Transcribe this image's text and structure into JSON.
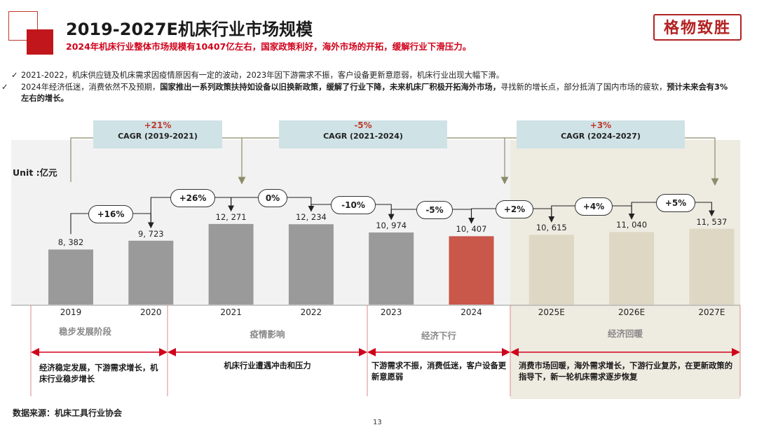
{
  "title": "2019-2027E机床行业市场规模",
  "subtitle": "2024年机床行业整体市场规模有10407亿左右，国家政策利好，海外市场的开拓，缓解行业下滑压力。",
  "logo_text": "格物致胜",
  "bullets": [
    {
      "check": "✓",
      "text": "2021-2022，机床供应链及机床需求因疫情原因有一定的波动，2023年因下游需求不振，客户设备更新意愿弱，机床行业出现大幅下滑。"
    },
    {
      "check": "✓",
      "text_normal_1": "2024年经济低迷，消费依然不及预期，",
      "text_bold_1": "国家推出一系列政策扶持如设备以旧换新政策，缓解了行业下降，未来机床厂积极开拓海外市场，",
      "text_normal_2": "寻找新的增长点，部分抵消了国内市场的疲软，",
      "text_bold_2": "预计未来会有3%左右的增长。"
    }
  ],
  "unit_label": "Unit :亿元",
  "cagr": [
    {
      "pct": "+21%",
      "label": "CAGR (2019-2021)"
    },
    {
      "pct": "-5%",
      "label": "CAGR (2021-2024)"
    },
    {
      "pct": "+3%",
      "label": "CAGR (2024-2027)"
    }
  ],
  "growth_pills": [
    "+16%",
    "+26%",
    "0%",
    "-10%",
    "-5%",
    "+2%",
    "+4%",
    "+5%"
  ],
  "chart_data": {
    "type": "bar",
    "categories": [
      "2019",
      "2020",
      "2021",
      "2022",
      "2023",
      "2024",
      "2025E",
      "2026E",
      "2027E"
    ],
    "values": [
      8382,
      9723,
      12271,
      12234,
      10974,
      10407,
      10615,
      11040,
      11537
    ],
    "value_labels": [
      "8, 382",
      "9, 723",
      "12, 271",
      "12, 234",
      "10, 974",
      "10, 407",
      "10, 615",
      "11, 040",
      "11, 537"
    ],
    "ylabel": "Unit :亿元",
    "colors": {
      "historical": "#9a9a9a",
      "highlight": "#c9574a",
      "forecast": "#ddd7c4"
    },
    "highlight_index": 5,
    "forecast_start_index": 6,
    "grid": false
  },
  "stages": [
    {
      "name": "稳步发展阶段",
      "desc": "经济稳定发展，下游需求增长，机床行业稳步增长"
    },
    {
      "name": "疫情影响",
      "desc": "机床行业遭遇冲击和压力"
    },
    {
      "name": "经济下行",
      "desc": "下游需求不振，消费低迷，客户设备更新意愿弱"
    },
    {
      "name": "经济回暖",
      "desc": "消费市场回暖，海外需求增长，下游行业复苏，在更新政策的指导下，新一轮机床需求逐步恢复"
    }
  ],
  "source": "数据来源：机床工具行业协会",
  "page_number": "13"
}
